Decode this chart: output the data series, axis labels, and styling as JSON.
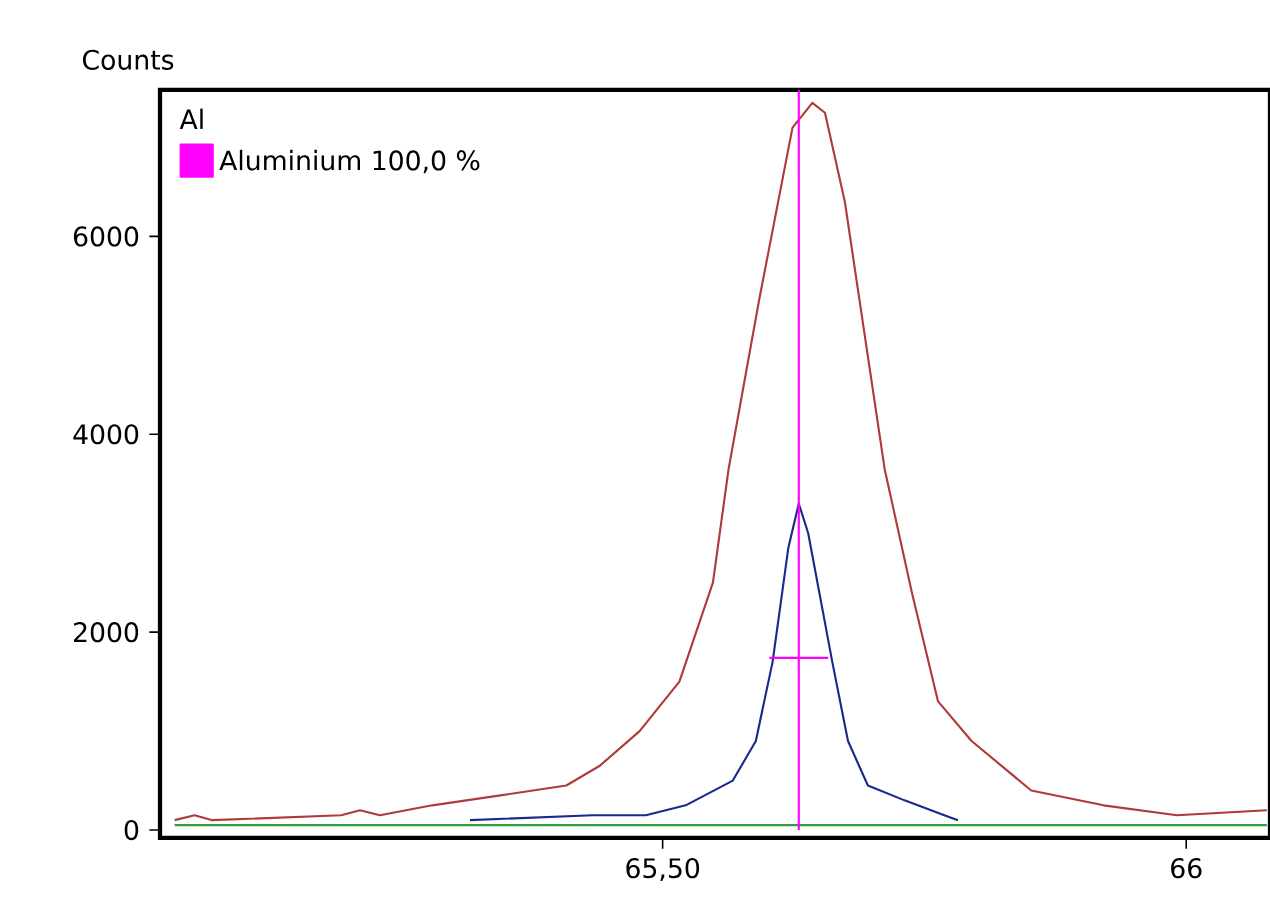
{
  "chart_data": {
    "type": "line",
    "ylabel": "Counts",
    "legend_title": "Al",
    "legend": "top left",
    "grid": false,
    "xlim": [
      65.02,
      66.08
    ],
    "xticks": [
      {
        "value": 65.5,
        "label": "65,50"
      },
      66
    ],
    "ylim": [
      -80,
      7480
    ],
    "yticks": [
      0,
      2000,
      4000,
      6000
    ],
    "series": [
      {
        "color": "#b03a3a",
        "x": [
          65.034,
          65.053,
          65.07,
          65.193,
          65.211,
          65.23,
          65.28,
          65.345,
          65.408,
          65.44,
          65.478,
          65.516,
          65.548,
          65.563,
          65.592,
          65.624,
          65.643,
          65.655,
          65.674,
          65.712,
          65.738,
          65.763,
          65.795,
          65.852,
          65.921,
          65.991,
          66.077
        ],
        "values": [
          100,
          150,
          100,
          150,
          200,
          150,
          250,
          350,
          450,
          650,
          1000,
          1500,
          2500,
          3650,
          5350,
          7100,
          7350,
          7250,
          6350,
          3650,
          2400,
          1300,
          900,
          400,
          250,
          150,
          200
        ]
      },
      {
        "color": "#1a2a8a",
        "x": [
          65.316,
          65.433,
          65.484,
          65.522,
          65.567,
          65.589,
          65.605,
          65.62,
          65.63,
          65.639,
          65.662,
          65.677,
          65.696,
          65.731,
          65.769,
          65.782
        ],
        "values": [
          100,
          150,
          150,
          250,
          500,
          900,
          1700,
          2850,
          3300,
          3000,
          1700,
          900,
          450,
          300,
          150,
          100
        ]
      },
      {
        "color": "#2e9e3e",
        "x": [
          65.034,
          66.077
        ],
        "values": [
          50,
          50
        ]
      },
      {
        "type": "line",
        "name": "Aluminium 100,0 %",
        "color": "#ff00ff",
        "x": [
          65.63,
          65.63
        ],
        "values": [
          0,
          7480
        ]
      },
      {
        "type": "line",
        "color": "#ff00ff",
        "x": [
          65.602,
          65.658
        ],
        "values": [
          1740,
          1740
        ]
      }
    ]
  }
}
